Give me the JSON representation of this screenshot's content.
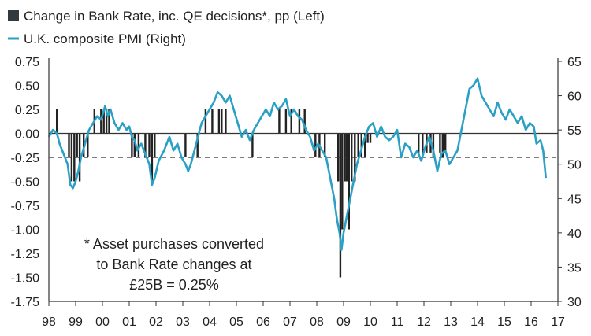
{
  "chart_data": {
    "type": "bar+line",
    "legend": [
      {
        "label": "Change in Bank Rate, inc. QE decisions*, pp (Left)",
        "marker": "square",
        "color": "#333a3f"
      },
      {
        "label": "U.K. composite PMI (Right)",
        "marker": "line",
        "color": "#2aa0c4"
      }
    ],
    "left_axis": {
      "ylim": [
        -1.75,
        0.75
      ],
      "ticks": [
        "0.75",
        "0.50",
        "0.25",
        "0.00",
        "-0.25",
        "-0.50",
        "-0.75",
        "-1.00",
        "-1.25",
        "-1.50",
        "-1.75"
      ]
    },
    "right_axis": {
      "ylim": [
        30,
        65
      ],
      "ticks": [
        "65",
        "60",
        "55",
        "50",
        "45",
        "40",
        "35",
        "30"
      ]
    },
    "x_ticks": [
      "98",
      "99",
      "00",
      "01",
      "02",
      "03",
      "04",
      "05",
      "06",
      "07",
      "08",
      "09",
      "10",
      "11",
      "12",
      "13",
      "14",
      "15",
      "16",
      "17"
    ],
    "x_range": [
      1998,
      2017
    ],
    "reference_line": {
      "value": -0.25,
      "style": "dashed"
    },
    "annotation": [
      "* Asset purchases converted",
      "to Bank Rate changes at",
      "£25B = 0.25%"
    ],
    "bank_rate_changes": [
      {
        "date": 1998.3,
        "value": 0.25
      },
      {
        "date": 1998.75,
        "value": -0.25
      },
      {
        "date": 1998.85,
        "value": -0.5
      },
      {
        "date": 1998.95,
        "value": -0.5
      },
      {
        "date": 1999.05,
        "value": -0.25
      },
      {
        "date": 1999.15,
        "value": -0.5
      },
      {
        "date": 1999.3,
        "value": -0.25
      },
      {
        "date": 1999.45,
        "value": -0.25
      },
      {
        "date": 1999.7,
        "value": 0.25
      },
      {
        "date": 1999.95,
        "value": 0.25
      },
      {
        "date": 2000.05,
        "value": 0.25
      },
      {
        "date": 2000.15,
        "value": 0.25
      },
      {
        "date": 2000.25,
        "value": 0.25
      },
      {
        "date": 2001.1,
        "value": -0.25
      },
      {
        "date": 2001.2,
        "value": -0.25
      },
      {
        "date": 2001.35,
        "value": -0.25
      },
      {
        "date": 2001.6,
        "value": -0.25
      },
      {
        "date": 2001.75,
        "value": -0.25
      },
      {
        "date": 2001.85,
        "value": -0.5
      },
      {
        "date": 2001.95,
        "value": -0.25
      },
      {
        "date": 2003.1,
        "value": -0.25
      },
      {
        "date": 2003.55,
        "value": -0.25
      },
      {
        "date": 2003.85,
        "value": 0.25
      },
      {
        "date": 2004.1,
        "value": 0.25
      },
      {
        "date": 2004.35,
        "value": 0.25
      },
      {
        "date": 2004.45,
        "value": 0.25
      },
      {
        "date": 2004.6,
        "value": 0.25
      },
      {
        "date": 2005.6,
        "value": -0.25
      },
      {
        "date": 2006.6,
        "value": 0.25
      },
      {
        "date": 2006.85,
        "value": 0.25
      },
      {
        "date": 2007.05,
        "value": 0.25
      },
      {
        "date": 2007.35,
        "value": 0.25
      },
      {
        "date": 2007.55,
        "value": 0.25
      },
      {
        "date": 2007.95,
        "value": -0.25
      },
      {
        "date": 2008.1,
        "value": -0.25
      },
      {
        "date": 2008.3,
        "value": -0.25
      },
      {
        "date": 2008.8,
        "value": -0.5
      },
      {
        "date": 2008.88,
        "value": -1.5
      },
      {
        "date": 2008.95,
        "value": -1.0
      },
      {
        "date": 2009.05,
        "value": -0.5
      },
      {
        "date": 2009.12,
        "value": -0.5
      },
      {
        "date": 2009.2,
        "value": -1.0
      },
      {
        "date": 2009.3,
        "value": -0.5
      },
      {
        "date": 2009.42,
        "value": -0.5
      },
      {
        "date": 2009.55,
        "value": -0.25
      },
      {
        "date": 2009.67,
        "value": -0.25
      },
      {
        "date": 2009.8,
        "value": -0.25
      },
      {
        "date": 2009.9,
        "value": -0.1
      },
      {
        "date": 2010.0,
        "value": -0.1
      },
      {
        "date": 2011.8,
        "value": -0.25
      },
      {
        "date": 2011.95,
        "value": -0.25
      },
      {
        "date": 2012.1,
        "value": -0.2
      },
      {
        "date": 2012.25,
        "value": -0.2
      },
      {
        "date": 2012.35,
        "value": -0.25
      },
      {
        "date": 2012.6,
        "value": -0.2
      },
      {
        "date": 2012.7,
        "value": -0.25
      },
      {
        "date": 2012.8,
        "value": -0.2
      }
    ],
    "pmi": [
      [
        1998.0,
        54
      ],
      [
        1998.15,
        55
      ],
      [
        1998.3,
        54.5
      ],
      [
        1998.4,
        53
      ],
      [
        1998.5,
        52
      ],
      [
        1998.6,
        51
      ],
      [
        1998.7,
        50
      ],
      [
        1998.8,
        47
      ],
      [
        1998.9,
        46.5
      ],
      [
        1999.0,
        47.5
      ],
      [
        1999.1,
        49
      ],
      [
        1999.2,
        51
      ],
      [
        1999.35,
        53
      ],
      [
        1999.5,
        55
      ],
      [
        1999.65,
        56
      ],
      [
        1999.8,
        57
      ],
      [
        1999.95,
        56.5
      ],
      [
        2000.1,
        58.5
      ],
      [
        2000.2,
        57
      ],
      [
        2000.3,
        58
      ],
      [
        2000.45,
        56
      ],
      [
        2000.6,
        55
      ],
      [
        2000.75,
        56
      ],
      [
        2000.9,
        55
      ],
      [
        2001.0,
        55.5
      ],
      [
        2001.1,
        54
      ],
      [
        2001.2,
        53.5
      ],
      [
        2001.3,
        52
      ],
      [
        2001.45,
        53
      ],
      [
        2001.6,
        51.5
      ],
      [
        2001.75,
        50
      ],
      [
        2001.85,
        47
      ],
      [
        2001.95,
        48
      ],
      [
        2002.1,
        50.5
      ],
      [
        2002.3,
        52
      ],
      [
        2002.5,
        54
      ],
      [
        2002.65,
        52
      ],
      [
        2002.8,
        53
      ],
      [
        2002.95,
        51
      ],
      [
        2003.1,
        50
      ],
      [
        2003.2,
        49
      ],
      [
        2003.3,
        50
      ],
      [
        2003.5,
        53
      ],
      [
        2003.7,
        56
      ],
      [
        2003.85,
        57
      ],
      [
        2004.0,
        58
      ],
      [
        2004.15,
        59
      ],
      [
        2004.3,
        60.5
      ],
      [
        2004.45,
        60
      ],
      [
        2004.6,
        59
      ],
      [
        2004.75,
        60
      ],
      [
        2004.9,
        58
      ],
      [
        2005.05,
        56
      ],
      [
        2005.2,
        54
      ],
      [
        2005.35,
        55
      ],
      [
        2005.5,
        53.5
      ],
      [
        2005.65,
        55
      ],
      [
        2005.8,
        56
      ],
      [
        2005.95,
        57
      ],
      [
        2006.1,
        58
      ],
      [
        2006.25,
        57
      ],
      [
        2006.4,
        59
      ],
      [
        2006.55,
        58
      ],
      [
        2006.7,
        58.5
      ],
      [
        2006.85,
        59.5
      ],
      [
        2007.0,
        57
      ],
      [
        2007.15,
        58
      ],
      [
        2007.3,
        57
      ],
      [
        2007.45,
        56.5
      ],
      [
        2007.6,
        55
      ],
      [
        2007.75,
        54
      ],
      [
        2007.9,
        52
      ],
      [
        2008.05,
        53
      ],
      [
        2008.2,
        52
      ],
      [
        2008.35,
        51
      ],
      [
        2008.5,
        48
      ],
      [
        2008.65,
        45
      ],
      [
        2008.75,
        42
      ],
      [
        2008.85,
        40
      ],
      [
        2008.92,
        37.5
      ],
      [
        2009.0,
        40
      ],
      [
        2009.1,
        42
      ],
      [
        2009.2,
        44
      ],
      [
        2009.35,
        47
      ],
      [
        2009.5,
        50
      ],
      [
        2009.65,
        52
      ],
      [
        2009.8,
        54
      ],
      [
        2009.95,
        55.5
      ],
      [
        2010.1,
        56
      ],
      [
        2010.25,
        54
      ],
      [
        2010.4,
        55.5
      ],
      [
        2010.55,
        54
      ],
      [
        2010.7,
        53.5
      ],
      [
        2010.85,
        54
      ],
      [
        2011.0,
        55
      ],
      [
        2011.15,
        51
      ],
      [
        2011.3,
        53
      ],
      [
        2011.45,
        52.5
      ],
      [
        2011.6,
        51
      ],
      [
        2011.75,
        52
      ],
      [
        2011.9,
        50.5
      ],
      [
        2012.05,
        52.5
      ],
      [
        2012.2,
        54
      ],
      [
        2012.35,
        52
      ],
      [
        2012.5,
        49
      ],
      [
        2012.65,
        51.5
      ],
      [
        2012.8,
        52
      ],
      [
        2012.95,
        50
      ],
      [
        2013.1,
        51
      ],
      [
        2013.25,
        52
      ],
      [
        2013.4,
        55
      ],
      [
        2013.55,
        58
      ],
      [
        2013.7,
        61
      ],
      [
        2013.85,
        61.5
      ],
      [
        2014.0,
        62.5
      ],
      [
        2014.15,
        60
      ],
      [
        2014.3,
        59
      ],
      [
        2014.45,
        58
      ],
      [
        2014.6,
        57
      ],
      [
        2014.75,
        59
      ],
      [
        2014.9,
        57.5
      ],
      [
        2015.05,
        56.5
      ],
      [
        2015.2,
        58
      ],
      [
        2015.35,
        57
      ],
      [
        2015.5,
        56
      ],
      [
        2015.65,
        57
      ],
      [
        2015.8,
        55
      ],
      [
        2015.95,
        56
      ],
      [
        2016.1,
        55.5
      ],
      [
        2016.2,
        53
      ],
      [
        2016.35,
        53.5
      ],
      [
        2016.45,
        52
      ],
      [
        2016.55,
        48
      ]
    ]
  }
}
